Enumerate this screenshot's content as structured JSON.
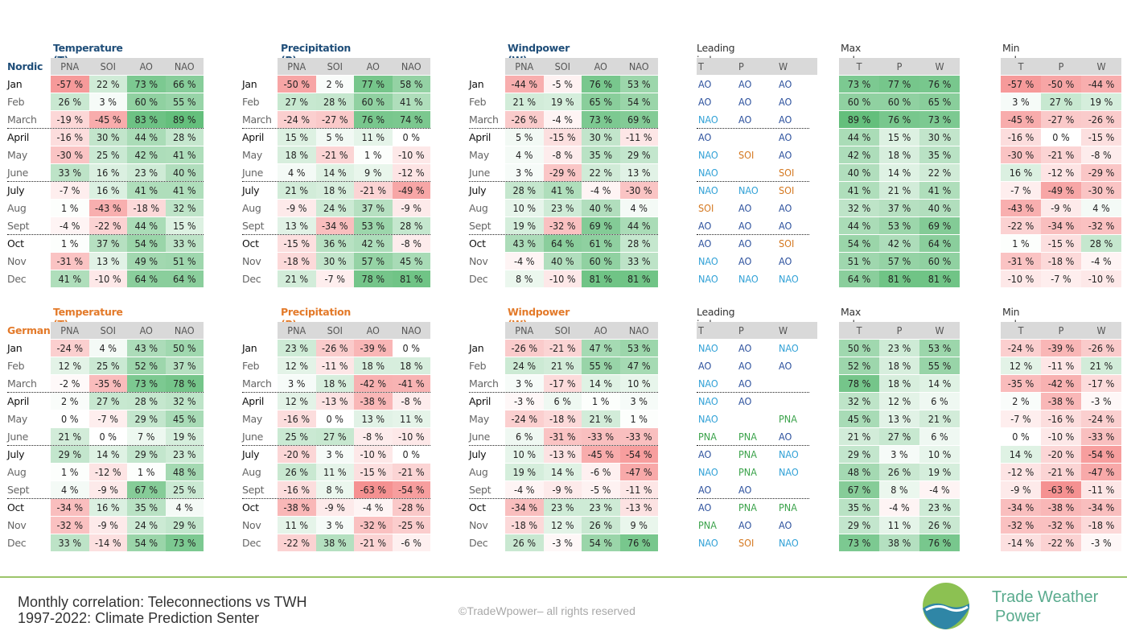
{
  "months": [
    "Jan",
    "Feb",
    "March",
    "April",
    "May",
    "June",
    "July",
    "Aug",
    "Sept",
    "Oct",
    "Nov",
    "Dec"
  ],
  "index_columns": [
    "PNA",
    "SOI",
    "AO",
    "NAO"
  ],
  "twp_columns": [
    "T",
    "P",
    "W"
  ],
  "leading_title": "Leading index",
  "max_title": "Max value",
  "min_title": "Min value",
  "colors": {
    "header_bg": "#d9d9d9",
    "nordic_title": "#1f4e79",
    "german_title": "#e37a2a",
    "AO": "#2a4f9c",
    "NAO": "#2fa0d6",
    "SOI": "#d4771f",
    "PNA": "#3aa24a",
    "footer_line": "#9cc56a",
    "brand": "#5aab8e"
  },
  "regions": [
    {
      "name": "Nordic",
      "tables": {
        "T": {
          "title": "Temperature (T)",
          "rows": [
            [
              -57,
              22,
              73,
              66
            ],
            [
              26,
              3,
              60,
              55
            ],
            [
              -19,
              -45,
              83,
              89
            ],
            [
              -16,
              30,
              44,
              28
            ],
            [
              -30,
              25,
              42,
              41
            ],
            [
              33,
              16,
              23,
              40
            ],
            [
              -7,
              16,
              41,
              41
            ],
            [
              1,
              -43,
              -18,
              32
            ],
            [
              -4,
              -22,
              44,
              15
            ],
            [
              1,
              37,
              54,
              33
            ],
            [
              -31,
              13,
              49,
              51
            ],
            [
              41,
              -10,
              64,
              64
            ]
          ]
        },
        "P": {
          "title": "Precipitation (P)",
          "rows": [
            [
              -50,
              2,
              77,
              58
            ],
            [
              27,
              28,
              60,
              41
            ],
            [
              -24,
              -27,
              76,
              74
            ],
            [
              15,
              5,
              11,
              0
            ],
            [
              18,
              -21,
              1,
              -10
            ],
            [
              4,
              14,
              9,
              -12
            ],
            [
              21,
              18,
              -21,
              -49
            ],
            [
              -9,
              24,
              37,
              -9
            ],
            [
              13,
              -34,
              53,
              28
            ],
            [
              -15,
              36,
              42,
              -8
            ],
            [
              -18,
              30,
              57,
              45
            ],
            [
              21,
              -7,
              78,
              81
            ]
          ]
        },
        "W": {
          "title": "Windpower (W)",
          "rows": [
            [
              -44,
              -5,
              76,
              53
            ],
            [
              21,
              19,
              65,
              54
            ],
            [
              -26,
              -4,
              73,
              69
            ],
            [
              5,
              -15,
              30,
              -11
            ],
            [
              4,
              -8,
              35,
              29
            ],
            [
              3,
              -29,
              22,
              13
            ],
            [
              28,
              41,
              -4,
              -30
            ],
            [
              10,
              23,
              40,
              4
            ],
            [
              19,
              -32,
              69,
              44
            ],
            [
              43,
              64,
              61,
              28
            ],
            [
              -4,
              40,
              60,
              33
            ],
            [
              8,
              -10,
              81,
              81
            ]
          ]
        }
      },
      "leading": [
        [
          "AO",
          "AO",
          "AO"
        ],
        [
          "AO",
          "AO",
          "AO"
        ],
        [
          "NAO",
          "AO",
          "AO"
        ],
        [
          "AO",
          "",
          "AO"
        ],
        [
          "NAO",
          "SOI",
          "AO"
        ],
        [
          "NAO",
          "",
          "SOI"
        ],
        [
          "NAO",
          "NAO",
          "SOI"
        ],
        [
          "SOI",
          "AO",
          "AO"
        ],
        [
          "AO",
          "AO",
          "AO"
        ],
        [
          "AO",
          "AO",
          "SOI"
        ],
        [
          "NAO",
          "AO",
          "AO"
        ],
        [
          "NAO",
          "NAO",
          "NAO"
        ]
      ],
      "max": [
        [
          73,
          77,
          76
        ],
        [
          60,
          60,
          65
        ],
        [
          89,
          76,
          73
        ],
        [
          44,
          15,
          30
        ],
        [
          42,
          18,
          35
        ],
        [
          40,
          14,
          22
        ],
        [
          41,
          21,
          41
        ],
        [
          32,
          37,
          40
        ],
        [
          44,
          53,
          69
        ],
        [
          54,
          42,
          64
        ],
        [
          51,
          57,
          60
        ],
        [
          64,
          81,
          81
        ]
      ],
      "min": [
        [
          -57,
          -50,
          -44
        ],
        [
          3,
          27,
          19
        ],
        [
          -45,
          -27,
          -26
        ],
        [
          -16,
          0,
          -15
        ],
        [
          -30,
          -21,
          -8
        ],
        [
          16,
          -12,
          -29
        ],
        [
          -7,
          -49,
          -30
        ],
        [
          -43,
          -9,
          4
        ],
        [
          -22,
          -34,
          -32
        ],
        [
          1,
          -15,
          28
        ],
        [
          -31,
          -18,
          -4
        ],
        [
          -10,
          -7,
          -10
        ]
      ]
    },
    {
      "name": "German",
      "tables": {
        "T": {
          "title": "Temperature (T)",
          "rows": [
            [
              -24,
              4,
              43,
              50
            ],
            [
              12,
              25,
              52,
              37
            ],
            [
              -2,
              -35,
              73,
              78
            ],
            [
              2,
              27,
              28,
              32
            ],
            [
              0,
              -7,
              29,
              45
            ],
            [
              21,
              0,
              7,
              19
            ],
            [
              29,
              14,
              29,
              23
            ],
            [
              1,
              -12,
              1,
              48
            ],
            [
              4,
              -9,
              67,
              25
            ],
            [
              -34,
              16,
              35,
              4
            ],
            [
              -32,
              -9,
              24,
              29
            ],
            [
              33,
              -14,
              54,
              73
            ]
          ]
        },
        "P": {
          "title": "Precipitation (P)",
          "rows": [
            [
              23,
              -26,
              -39,
              0
            ],
            [
              12,
              -11,
              18,
              18
            ],
            [
              3,
              18,
              -42,
              -41
            ],
            [
              12,
              -13,
              -38,
              -8
            ],
            [
              -16,
              0,
              13,
              11
            ],
            [
              25,
              27,
              -8,
              -10
            ],
            [
              -20,
              3,
              -10,
              0
            ],
            [
              26,
              11,
              -15,
              -21
            ],
            [
              -16,
              8,
              -63,
              -54
            ],
            [
              -38,
              -9,
              -4,
              -28
            ],
            [
              11,
              3,
              -32,
              -25
            ],
            [
              -22,
              38,
              -21,
              -6
            ]
          ]
        },
        "W": {
          "title": "Windpower (W)",
          "rows": [
            [
              -26,
              -21,
              47,
              53
            ],
            [
              24,
              21,
              55,
              47
            ],
            [
              3,
              -17,
              14,
              10
            ],
            [
              -3,
              6,
              1,
              3
            ],
            [
              -24,
              -18,
              21,
              1
            ],
            [
              6,
              -31,
              -33,
              -33
            ],
            [
              10,
              -13,
              -45,
              -54
            ],
            [
              19,
              14,
              -6,
              -47
            ],
            [
              -4,
              -9,
              -5,
              -11
            ],
            [
              -34,
              23,
              23,
              -13
            ],
            [
              -18,
              12,
              26,
              9
            ],
            [
              26,
              -3,
              54,
              76
            ]
          ]
        }
      },
      "leading": [
        [
          "NAO",
          "AO",
          "NAO"
        ],
        [
          "AO",
          "AO",
          "AO"
        ],
        [
          "NAO",
          "AO",
          ""
        ],
        [
          "NAO",
          "AO",
          ""
        ],
        [
          "NAO",
          "",
          "PNA"
        ],
        [
          "PNA",
          "PNA",
          "AO"
        ],
        [
          "AO",
          "PNA",
          "NAO"
        ],
        [
          "NAO",
          "PNA",
          "NAO"
        ],
        [
          "AO",
          "AO",
          ""
        ],
        [
          "AO",
          "PNA",
          "PNA"
        ],
        [
          "PNA",
          "AO",
          "AO"
        ],
        [
          "NAO",
          "SOI",
          "NAO"
        ]
      ],
      "max": [
        [
          50,
          23,
          53
        ],
        [
          52,
          18,
          55
        ],
        [
          78,
          18,
          14
        ],
        [
          32,
          12,
          6
        ],
        [
          45,
          13,
          21
        ],
        [
          21,
          27,
          6
        ],
        [
          29,
          3,
          10
        ],
        [
          48,
          26,
          19
        ],
        [
          67,
          8,
          -4
        ],
        [
          35,
          -4,
          23
        ],
        [
          29,
          11,
          26
        ],
        [
          73,
          38,
          76
        ]
      ],
      "min": [
        [
          -24,
          -39,
          -26
        ],
        [
          12,
          -11,
          21
        ],
        [
          -35,
          -42,
          -17
        ],
        [
          2,
          -38,
          -3
        ],
        [
          -7,
          -16,
          -24
        ],
        [
          0,
          -10,
          -33
        ],
        [
          14,
          -20,
          -54
        ],
        [
          -12,
          -21,
          -47
        ],
        [
          -9,
          -63,
          -11
        ],
        [
          -34,
          -38,
          -34
        ],
        [
          -32,
          -32,
          -18
        ],
        [
          -14,
          -22,
          -3
        ]
      ]
    }
  ],
  "footer": {
    "line1": "Monthly correlation: Teleconnections vs TWH",
    "line2": "1997-2022: Climate Prediction Senter",
    "copyright": "©TradeWpower– all rights reserved",
    "brand1": "Trade Weather",
    "brand2": "Power"
  }
}
